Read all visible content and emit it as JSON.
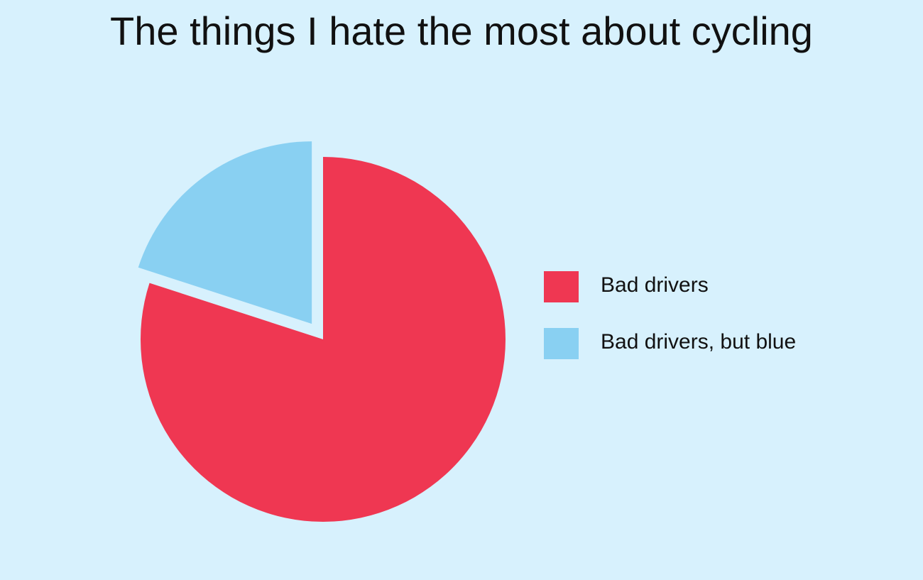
{
  "chart_data": {
    "type": "pie",
    "title": "The things I hate the most about cycling",
    "series": [
      {
        "name": "Bad drivers",
        "value": 80,
        "color": "#ef3752"
      },
      {
        "name": "Bad drivers, but blue",
        "value": 20,
        "color": "#89d0f2"
      }
    ],
    "exploded": [
      "Bad drivers, but blue"
    ],
    "legend_position": "right",
    "background": "#d7f1fd"
  }
}
